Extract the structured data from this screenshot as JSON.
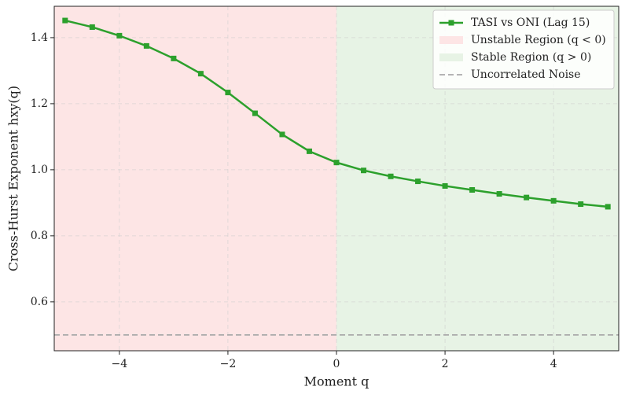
{
  "chart_data": {
    "type": "line",
    "xlabel": "Moment q",
    "ylabel": "Cross-Hurst Exponent hxy(q)",
    "x": [
      -5,
      -4.5,
      -4,
      -3.5,
      -3,
      -2.5,
      -2,
      -1.5,
      -1,
      -0.5,
      0,
      0.5,
      1,
      1.5,
      2,
      2.5,
      3,
      3.5,
      4,
      4.5,
      5
    ],
    "series": [
      {
        "name": "TASI vs ONI (Lag 15)",
        "color": "#2ca02c",
        "values": [
          1.452,
          1.432,
          1.406,
          1.375,
          1.337,
          1.291,
          1.234,
          1.171,
          1.107,
          1.056,
          1.022,
          0.998,
          0.98,
          0.965,
          0.951,
          0.939,
          0.927,
          0.916,
          0.906,
          0.896,
          0.888
        ]
      }
    ],
    "regions": [
      {
        "name": "Unstable Region (q < 0)",
        "color": "#fde5e5",
        "to": 0
      },
      {
        "name": "Stable Region (q > 0)",
        "color": "#e7f3e5",
        "from": 0
      }
    ],
    "hlines": [
      {
        "name": "Uncorrelated Noise",
        "value": 0.5,
        "color": "#aaaaaa"
      }
    ],
    "xlim": [
      -5.2,
      5.2
    ],
    "ylim": [
      0.452,
      1.495
    ],
    "xticks": [
      {
        "value": -4,
        "label": "−4"
      },
      {
        "value": -2,
        "label": "−2"
      },
      0,
      2,
      4
    ],
    "yticks": [
      0.6,
      0.8,
      {
        "value": 1,
        "label": "1.0"
      },
      1.2,
      1.4
    ],
    "grid": true,
    "legend": "upper right"
  }
}
